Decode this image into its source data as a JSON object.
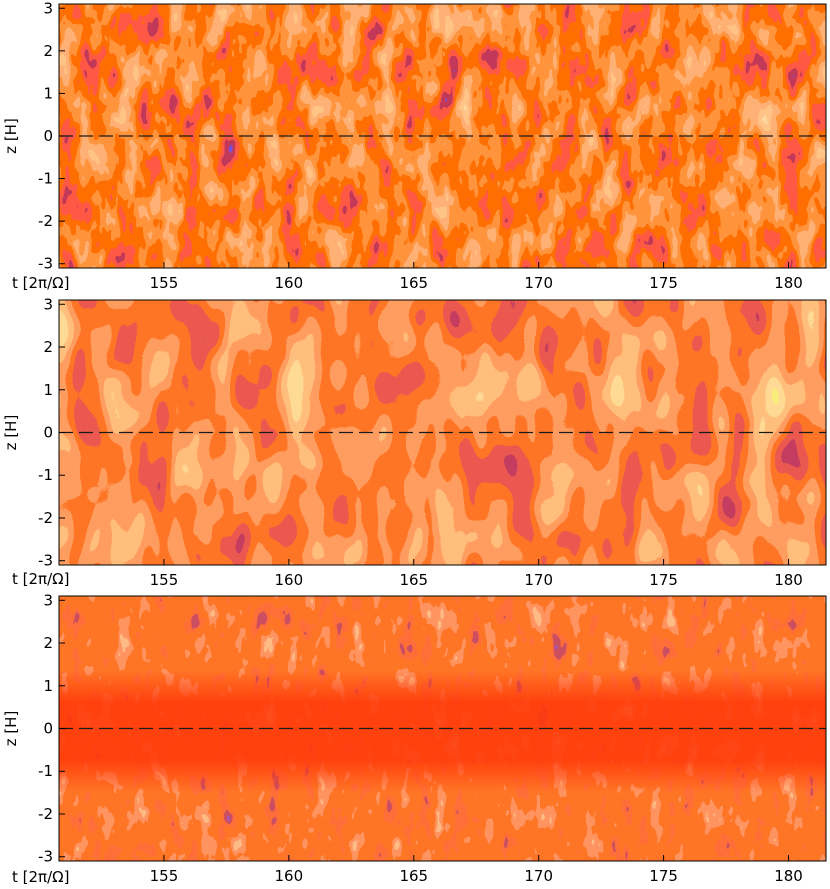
{
  "figure": {
    "x_axis_label": "t [2π/Ω]",
    "y_axis_label": "z [H]"
  },
  "colormap": [
    "#ff2a00",
    "#ff4d12",
    "#f86a2e",
    "#ff8c3c",
    "#ffae5a",
    "#cc1a10",
    "#8a0a18",
    "#3a1fb0",
    "#1e18e0",
    "#c8c81e",
    "#f0f040"
  ],
  "chart_data": [
    {
      "type": "heatmap",
      "title": "",
      "xlabel": "t [2π/Ω]",
      "ylabel": "z [H]",
      "xlim": [
        150.8,
        181.5
      ],
      "ylim": [
        -3.1,
        3.1
      ],
      "x_ticks": [
        155,
        160,
        165,
        170,
        175,
        180
      ],
      "y_ticks": [
        3,
        2,
        1,
        0,
        -1,
        -2,
        -3
      ],
      "midplane_line": 0,
      "pattern": "upper and lower butterfly stripes, dense fine-scale structure"
    },
    {
      "type": "heatmap",
      "title": "",
      "xlabel": "t [2π/Ω]",
      "ylabel": "z [H]",
      "xlim": [
        150.8,
        181.5
      ],
      "ylim": [
        -3.1,
        3.1
      ],
      "x_ticks": [
        155,
        160,
        165,
        170,
        175,
        180
      ],
      "y_ticks": [
        3,
        2,
        1,
        0,
        -1,
        -2,
        -3
      ],
      "midplane_line": 0,
      "pattern": "broad regular butterfly stripes, period about 10"
    },
    {
      "type": "heatmap",
      "title": "",
      "xlabel": "t [2π/Ω]",
      "ylabel": "z [H]",
      "xlim": [
        150.8,
        181.5
      ],
      "ylim": [
        -3.1,
        3.1
      ],
      "x_ticks": [
        155,
        160,
        165,
        170,
        175,
        180
      ],
      "y_ticks": [
        3,
        2,
        1,
        0,
        -1,
        -2,
        -3
      ],
      "midplane_line": 0,
      "pattern": "quiet midplane, activity near |z| above 1.5"
    }
  ]
}
